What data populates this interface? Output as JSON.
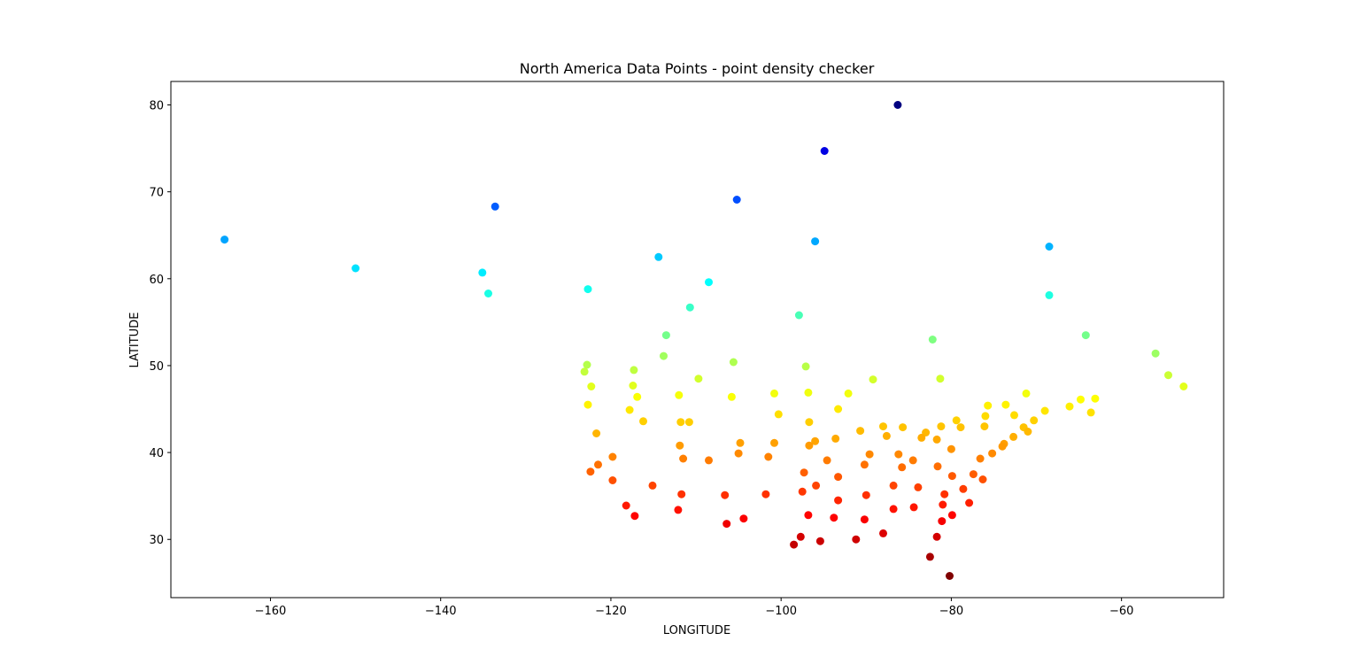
{
  "chart_data": {
    "type": "scatter",
    "title": "North America Data Points - point density checker",
    "xlabel": "LONGITUDE",
    "ylabel": "LATITUDE",
    "xlim": [
      -171.7,
      -48.0
    ],
    "ylim": [
      23.3,
      82.7
    ],
    "xticks": [
      -160,
      -140,
      -120,
      -100,
      -80,
      -60
    ],
    "yticks": [
      30,
      40,
      50,
      60,
      70,
      80
    ],
    "grid": false,
    "legend": "none",
    "colormap": "jet (by latitude)",
    "points": [
      {
        "x": -86.3,
        "y": 80.0
      },
      {
        "x": -94.9,
        "y": 74.7
      },
      {
        "x": -105.2,
        "y": 69.1
      },
      {
        "x": -133.6,
        "y": 68.3
      },
      {
        "x": -165.4,
        "y": 64.5
      },
      {
        "x": -96.0,
        "y": 64.3
      },
      {
        "x": -68.5,
        "y": 63.7
      },
      {
        "x": -114.4,
        "y": 62.5
      },
      {
        "x": -150.0,
        "y": 61.2
      },
      {
        "x": -135.1,
        "y": 60.7
      },
      {
        "x": -108.5,
        "y": 59.6
      },
      {
        "x": -122.7,
        "y": 58.8
      },
      {
        "x": -134.4,
        "y": 58.3
      },
      {
        "x": -68.5,
        "y": 58.1
      },
      {
        "x": -110.7,
        "y": 56.7
      },
      {
        "x": -97.9,
        "y": 55.8
      },
      {
        "x": -113.5,
        "y": 53.5
      },
      {
        "x": -64.2,
        "y": 53.5
      },
      {
        "x": -82.2,
        "y": 53.0
      },
      {
        "x": -56.0,
        "y": 51.4
      },
      {
        "x": -113.8,
        "y": 51.1
      },
      {
        "x": -105.6,
        "y": 50.4
      },
      {
        "x": -122.8,
        "y": 50.1
      },
      {
        "x": -97.1,
        "y": 49.9
      },
      {
        "x": -117.3,
        "y": 49.5
      },
      {
        "x": -123.1,
        "y": 49.3
      },
      {
        "x": -54.5,
        "y": 48.9
      },
      {
        "x": -81.3,
        "y": 48.5
      },
      {
        "x": -109.7,
        "y": 48.5
      },
      {
        "x": -89.2,
        "y": 48.4
      },
      {
        "x": -52.7,
        "y": 47.6
      },
      {
        "x": -117.4,
        "y": 47.7
      },
      {
        "x": -122.3,
        "y": 47.6
      },
      {
        "x": -96.8,
        "y": 46.9
      },
      {
        "x": -100.8,
        "y": 46.8
      },
      {
        "x": -92.1,
        "y": 46.8
      },
      {
        "x": -71.2,
        "y": 46.8
      },
      {
        "x": -112.0,
        "y": 46.6
      },
      {
        "x": -116.9,
        "y": 46.4
      },
      {
        "x": -105.8,
        "y": 46.4
      },
      {
        "x": -64.8,
        "y": 46.1
      },
      {
        "x": -63.1,
        "y": 46.2
      },
      {
        "x": -122.7,
        "y": 45.5
      },
      {
        "x": -75.7,
        "y": 45.4
      },
      {
        "x": -73.6,
        "y": 45.5
      },
      {
        "x": -66.1,
        "y": 45.3
      },
      {
        "x": -93.3,
        "y": 45.0
      },
      {
        "x": -117.8,
        "y": 44.9
      },
      {
        "x": -69.0,
        "y": 44.8
      },
      {
        "x": -63.6,
        "y": 44.6
      },
      {
        "x": -100.3,
        "y": 44.4
      },
      {
        "x": -76.0,
        "y": 44.2
      },
      {
        "x": -72.6,
        "y": 44.3
      },
      {
        "x": -79.4,
        "y": 43.7
      },
      {
        "x": -96.7,
        "y": 43.5
      },
      {
        "x": -116.2,
        "y": 43.6
      },
      {
        "x": -111.8,
        "y": 43.5
      },
      {
        "x": -110.8,
        "y": 43.5
      },
      {
        "x": -70.3,
        "y": 43.7
      },
      {
        "x": -76.1,
        "y": 43.0
      },
      {
        "x": -78.9,
        "y": 42.9
      },
      {
        "x": -88.0,
        "y": 43.0
      },
      {
        "x": -85.7,
        "y": 42.9
      },
      {
        "x": -81.2,
        "y": 43.0
      },
      {
        "x": -71.5,
        "y": 42.9
      },
      {
        "x": -90.7,
        "y": 42.5
      },
      {
        "x": -83.0,
        "y": 42.3
      },
      {
        "x": -71.0,
        "y": 42.4
      },
      {
        "x": -121.7,
        "y": 42.2
      },
      {
        "x": -87.6,
        "y": 41.9
      },
      {
        "x": -83.5,
        "y": 41.7
      },
      {
        "x": -81.7,
        "y": 41.5
      },
      {
        "x": -93.6,
        "y": 41.6
      },
      {
        "x": -72.7,
        "y": 41.8
      },
      {
        "x": -104.8,
        "y": 41.1
      },
      {
        "x": -100.8,
        "y": 41.1
      },
      {
        "x": -96.0,
        "y": 41.3
      },
      {
        "x": -73.8,
        "y": 41.0
      },
      {
        "x": -96.7,
        "y": 40.8
      },
      {
        "x": -111.9,
        "y": 40.8
      },
      {
        "x": -80.0,
        "y": 40.4
      },
      {
        "x": -74.0,
        "y": 40.7
      },
      {
        "x": -105.0,
        "y": 39.9
      },
      {
        "x": -86.2,
        "y": 39.8
      },
      {
        "x": -89.6,
        "y": 39.8
      },
      {
        "x": -75.2,
        "y": 39.9
      },
      {
        "x": -84.5,
        "y": 39.1
      },
      {
        "x": -119.8,
        "y": 39.5
      },
      {
        "x": -76.6,
        "y": 39.3
      },
      {
        "x": -101.5,
        "y": 39.5
      },
      {
        "x": -94.6,
        "y": 39.1
      },
      {
        "x": -111.5,
        "y": 39.3
      },
      {
        "x": -108.5,
        "y": 39.1
      },
      {
        "x": -121.5,
        "y": 38.6
      },
      {
        "x": -90.2,
        "y": 38.6
      },
      {
        "x": -85.8,
        "y": 38.3
      },
      {
        "x": -81.6,
        "y": 38.4
      },
      {
        "x": -122.4,
        "y": 37.8
      },
      {
        "x": -77.4,
        "y": 37.5
      },
      {
        "x": -97.3,
        "y": 37.7
      },
      {
        "x": -93.3,
        "y": 37.2
      },
      {
        "x": -79.9,
        "y": 37.3
      },
      {
        "x": -76.3,
        "y": 36.9
      },
      {
        "x": -119.8,
        "y": 36.8
      },
      {
        "x": -86.8,
        "y": 36.2
      },
      {
        "x": -95.9,
        "y": 36.2
      },
      {
        "x": -115.1,
        "y": 36.2
      },
      {
        "x": -83.9,
        "y": 36.0
      },
      {
        "x": -78.6,
        "y": 35.8
      },
      {
        "x": -80.8,
        "y": 35.2
      },
      {
        "x": -111.7,
        "y": 35.2
      },
      {
        "x": -101.8,
        "y": 35.2
      },
      {
        "x": -97.5,
        "y": 35.5
      },
      {
        "x": -106.6,
        "y": 35.1
      },
      {
        "x": -90.0,
        "y": 35.1
      },
      {
        "x": -93.3,
        "y": 34.5
      },
      {
        "x": -77.9,
        "y": 34.2
      },
      {
        "x": -81.0,
        "y": 34.0
      },
      {
        "x": -118.2,
        "y": 33.9
      },
      {
        "x": -86.8,
        "y": 33.5
      },
      {
        "x": -84.4,
        "y": 33.7
      },
      {
        "x": -112.1,
        "y": 33.4
      },
      {
        "x": -117.2,
        "y": 32.7
      },
      {
        "x": -96.8,
        "y": 32.8
      },
      {
        "x": -93.8,
        "y": 32.5
      },
      {
        "x": -90.2,
        "y": 32.3
      },
      {
        "x": -81.1,
        "y": 32.1
      },
      {
        "x": -79.9,
        "y": 32.8
      },
      {
        "x": -104.4,
        "y": 32.4
      },
      {
        "x": -106.4,
        "y": 31.8
      },
      {
        "x": -88.0,
        "y": 30.7
      },
      {
        "x": -97.7,
        "y": 30.3
      },
      {
        "x": -91.2,
        "y": 30.0
      },
      {
        "x": -95.4,
        "y": 29.8
      },
      {
        "x": -98.5,
        "y": 29.4
      },
      {
        "x": -81.7,
        "y": 30.3
      },
      {
        "x": -82.5,
        "y": 28.0
      },
      {
        "x": -80.2,
        "y": 25.8
      }
    ]
  }
}
